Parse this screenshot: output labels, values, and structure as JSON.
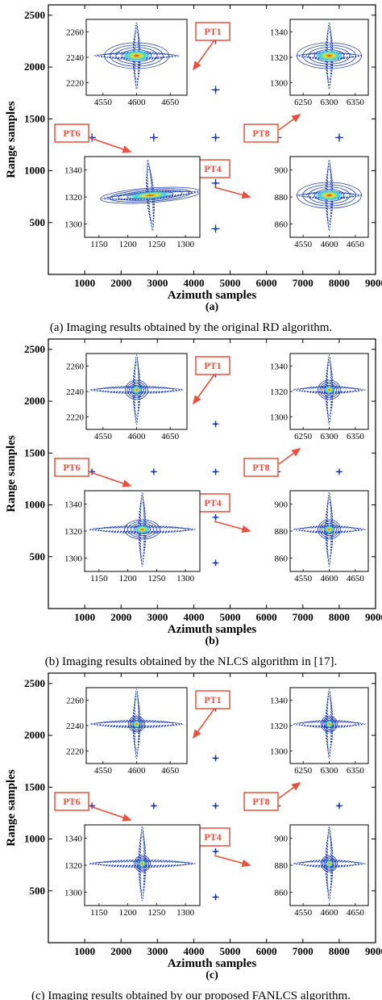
{
  "figure": {
    "panels": [
      {
        "letter": "(a)",
        "caption": "(a) Imaging results obtained by the original RD algorithm.",
        "xlabel": "Azimuth samples",
        "ylabel": "Range samples",
        "x_ticks": [
          "1000",
          "2000",
          "3000",
          "4000",
          "5000",
          "6000",
          "7000",
          "8000",
          "9000"
        ],
        "y_ticks": [
          "500",
          "1000",
          "1500",
          "2000",
          "2500"
        ],
        "focus": "original-rd",
        "insets": [
          {
            "target": "PT1",
            "x_ticks": [
              "4550",
              "4600",
              "4650"
            ],
            "y_ticks": [
              "2260",
              "2240",
              "2220"
            ]
          },
          {
            "target": "PT8",
            "x_ticks": [
              "6250",
              "6300",
              "6350"
            ],
            "y_ticks": [
              "1340",
              "1320",
              "1300"
            ]
          },
          {
            "target": "PT6",
            "x_ticks": [
              "1150",
              "1200",
              "1250",
              "1300"
            ],
            "y_ticks": [
              "1340",
              "1320",
              "1300"
            ]
          },
          {
            "target": "PT4",
            "x_ticks": [
              "4550",
              "4600",
              "4650"
            ],
            "y_ticks": [
              "900",
              "880",
              "860"
            ]
          }
        ]
      },
      {
        "letter": "(b)",
        "caption": "(b) Imaging results obtained by the NLCS algorithm in [17].",
        "xlabel": "Azimuth samples",
        "ylabel": "Range samples",
        "x_ticks": [
          "1000",
          "2000",
          "3000",
          "4000",
          "5000",
          "6000",
          "7000",
          "8000",
          "9000"
        ],
        "y_ticks": [
          "500",
          "1000",
          "1500",
          "2000",
          "2500"
        ],
        "focus": "nlcs",
        "insets": [
          {
            "target": "PT1",
            "x_ticks": [
              "4550",
              "4600",
              "4650"
            ],
            "y_ticks": [
              "2260",
              "2240",
              "2220"
            ]
          },
          {
            "target": "PT8",
            "x_ticks": [
              "6250",
              "6300",
              "6350"
            ],
            "y_ticks": [
              "1340",
              "1320",
              "1300"
            ]
          },
          {
            "target": "PT6",
            "x_ticks": [
              "1150",
              "1200",
              "1250",
              "1300"
            ],
            "y_ticks": [
              "1340",
              "1320",
              "1300"
            ]
          },
          {
            "target": "PT4",
            "x_ticks": [
              "4550",
              "4600",
              "4650"
            ],
            "y_ticks": [
              "900",
              "880",
              "860"
            ]
          }
        ]
      },
      {
        "letter": "(c)",
        "caption": "(c) Imaging results obtained by our proposed FANLCS algorithm.",
        "xlabel": "Azimuth samples",
        "ylabel": "Range samples",
        "x_ticks": [
          "1000",
          "2000",
          "3000",
          "4000",
          "5000",
          "6000",
          "7000",
          "8000",
          "9000"
        ],
        "y_ticks": [
          "500",
          "1000",
          "1500",
          "2000",
          "2500"
        ],
        "focus": "fanlcs",
        "insets": [
          {
            "target": "PT1",
            "x_ticks": [
              "4550",
              "4600",
              "4650"
            ],
            "y_ticks": [
              "2260",
              "2240",
              "2220"
            ]
          },
          {
            "target": "PT8",
            "x_ticks": [
              "6250",
              "6300",
              "6350"
            ],
            "y_ticks": [
              "1340",
              "1320",
              "1300"
            ]
          },
          {
            "target": "PT6",
            "x_ticks": [
              "1150",
              "1200",
              "1250",
              "1300"
            ],
            "y_ticks": [
              "1340",
              "1320",
              "1300"
            ]
          },
          {
            "target": "PT4",
            "x_ticks": [
              "4550",
              "4600",
              "4650"
            ],
            "y_ticks": [
              "900",
              "880",
              "860"
            ]
          }
        ]
      }
    ]
  },
  "colors": {
    "contour": "#1f3fae",
    "contour_light": "#3a8fd8",
    "core_cyan": "#38d6e6",
    "core_yellow": "#e8e22a",
    "core_red": "#d83020",
    "callout": "#e8503c"
  },
  "chart_data": [
    {
      "type": "scatter",
      "title": "",
      "xlabel": "Azimuth samples",
      "ylabel": "Range samples",
      "xlim": [
        0,
        9000
      ],
      "ylim": [
        0,
        2600
      ],
      "points": [
        {
          "label": "PT1",
          "x": 4600,
          "y": 2260,
          "labeled": true
        },
        {
          "label": "",
          "x": 4600,
          "y": 1780,
          "labeled": false
        },
        {
          "label": "PT6",
          "x": 1200,
          "y": 1320,
          "labeled": true
        },
        {
          "label": "",
          "x": 2900,
          "y": 1320,
          "labeled": false
        },
        {
          "label": "",
          "x": 4600,
          "y": 1320,
          "labeled": false
        },
        {
          "label": "PT8",
          "x": 6300,
          "y": 1320,
          "labeled": true
        },
        {
          "label": "",
          "x": 8000,
          "y": 1320,
          "labeled": false
        },
        {
          "label": "PT4",
          "x": 4600,
          "y": 880,
          "labeled": true
        },
        {
          "label": "",
          "x": 4600,
          "y": 440,
          "labeled": false
        }
      ]
    },
    {
      "type": "scatter",
      "title": "",
      "xlabel": "Azimuth samples",
      "ylabel": "Range samples",
      "xlim": [
        0,
        9000
      ],
      "ylim": [
        0,
        2600
      ],
      "points": [
        {
          "label": "PT1",
          "x": 4600,
          "y": 2260,
          "labeled": true
        },
        {
          "label": "",
          "x": 4600,
          "y": 1780,
          "labeled": false
        },
        {
          "label": "PT6",
          "x": 1200,
          "y": 1320,
          "labeled": true
        },
        {
          "label": "",
          "x": 2900,
          "y": 1320,
          "labeled": false
        },
        {
          "label": "",
          "x": 4600,
          "y": 1320,
          "labeled": false
        },
        {
          "label": "PT8",
          "x": 6300,
          "y": 1320,
          "labeled": true
        },
        {
          "label": "",
          "x": 8000,
          "y": 1320,
          "labeled": false
        },
        {
          "label": "PT4",
          "x": 4600,
          "y": 880,
          "labeled": true
        },
        {
          "label": "",
          "x": 4600,
          "y": 440,
          "labeled": false
        }
      ]
    },
    {
      "type": "scatter",
      "title": "",
      "xlabel": "Azimuth samples",
      "ylabel": "Range samples",
      "xlim": [
        0,
        9000
      ],
      "ylim": [
        0,
        2600
      ],
      "points": [
        {
          "label": "PT1",
          "x": 4600,
          "y": 2260,
          "labeled": true
        },
        {
          "label": "",
          "x": 4600,
          "y": 1780,
          "labeled": false
        },
        {
          "label": "PT6",
          "x": 1200,
          "y": 1320,
          "labeled": true
        },
        {
          "label": "",
          "x": 2900,
          "y": 1320,
          "labeled": false
        },
        {
          "label": "",
          "x": 4600,
          "y": 1320,
          "labeled": false
        },
        {
          "label": "PT8",
          "x": 6300,
          "y": 1320,
          "labeled": true
        },
        {
          "label": "",
          "x": 8000,
          "y": 1320,
          "labeled": false
        },
        {
          "label": "PT4",
          "x": 4600,
          "y": 880,
          "labeled": true
        },
        {
          "label": "",
          "x": 4600,
          "y": 440,
          "labeled": false
        }
      ]
    }
  ]
}
